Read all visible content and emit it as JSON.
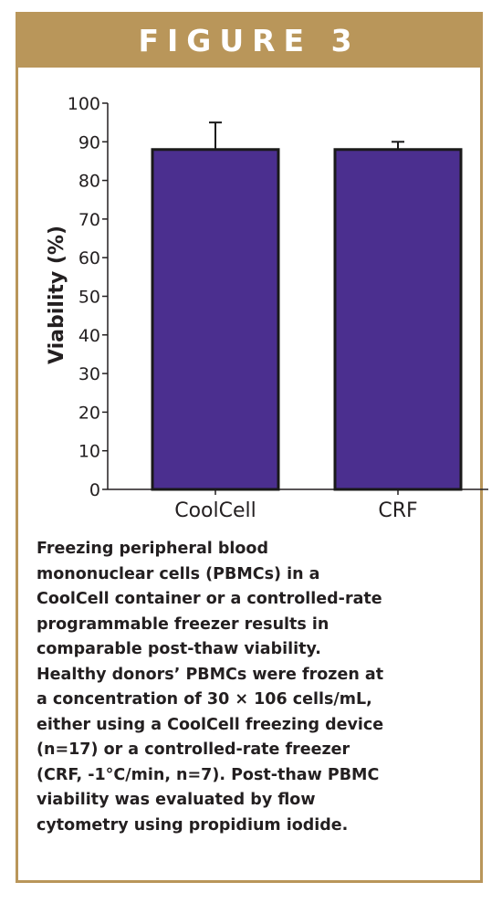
{
  "figure": {
    "header": "FIGURE 3",
    "caption": "Freezing peripheral blood\nmononuclear cells (PBMCs) in a\nCoolCell container or a controlled-rate\nprogrammable freezer results in\ncomparable post-thaw viability.\nHealthy donors’ PBMCs were frozen at\na concentration of 30 × 106 cells/mL,\neither using a CoolCell freezing device\n(n=17) or a controlled-rate freezer\n(CRF, -1°C/min, n=7). Post-thaw PBMC\nviability was evaluated by flow\ncytometry using propidium iodide."
  },
  "chart_data": {
    "type": "bar",
    "title": "",
    "xlabel": "",
    "ylabel": "Viability (%)",
    "categories": [
      "CoolCell",
      "CRF"
    ],
    "values": [
      88,
      88
    ],
    "error_upper": [
      95,
      90
    ],
    "ylim": [
      0,
      100
    ],
    "yticks": [
      0,
      10,
      20,
      30,
      40,
      50,
      60,
      70,
      80,
      90,
      100
    ],
    "grid": false,
    "legend": "none",
    "bar_color": "#4b2f8f"
  },
  "colors": {
    "accent": "#b9965a",
    "bar": "#4b2f8f",
    "text": "#231f20"
  }
}
